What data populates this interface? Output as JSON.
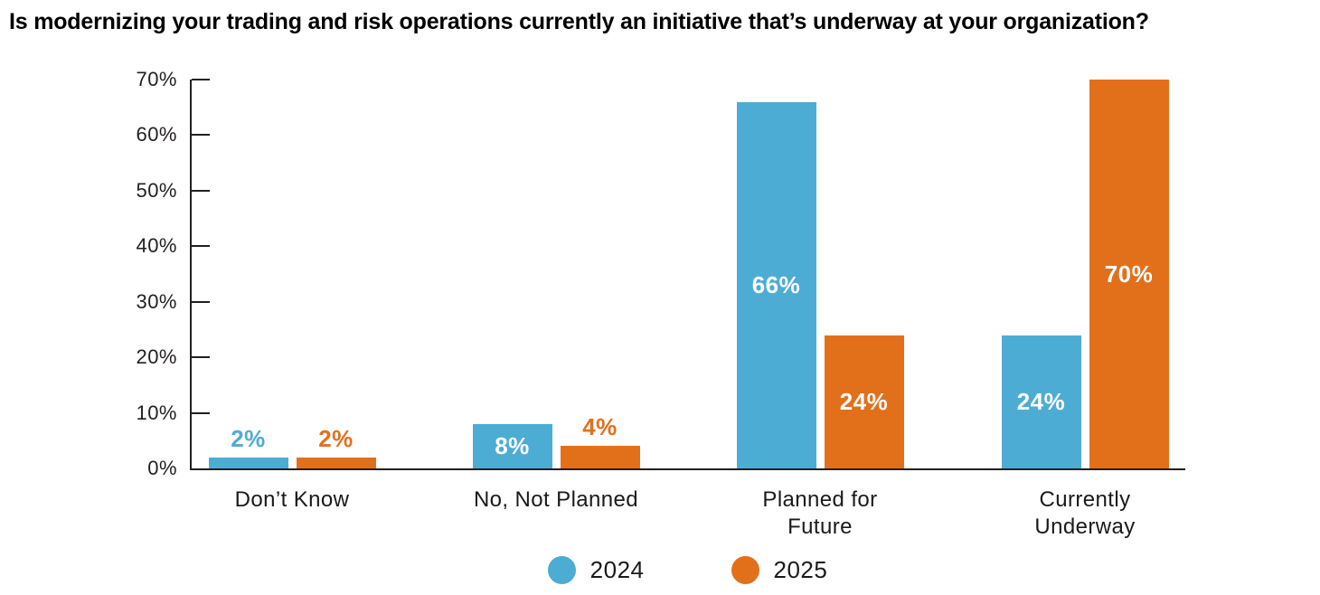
{
  "title": "Is modernizing your trading and risk operations currently an initiative that’s underway at your organization?",
  "colors": {
    "series_2024": "#4DACD4",
    "series_2025": "#E2701B",
    "axis": "#231F20",
    "title_text": "#000000",
    "category_text": "#1A1A1A",
    "value_label_inside": "#FFFFFF",
    "background": "#FFFFFF"
  },
  "chart_data": {
    "type": "bar",
    "title": "Is modernizing your trading and risk operations currently an initiative that’s underway at your organization?",
    "categories": [
      "Don’t Know",
      "No, Not Planned",
      "Planned for Future",
      "Currently Underway"
    ],
    "category_label_lines": [
      [
        "Don’t Know"
      ],
      [
        "No, Not Planned"
      ],
      [
        "Planned for",
        "Future"
      ],
      [
        "Currently",
        "Underway"
      ]
    ],
    "series": [
      {
        "name": "2024",
        "color": "#4DACD4",
        "values": [
          2,
          8,
          66,
          24
        ],
        "value_labels": [
          "2%",
          "8%",
          "66%",
          "24%"
        ]
      },
      {
        "name": "2025",
        "color": "#E2701B",
        "values": [
          2,
          4,
          24,
          70
        ],
        "value_labels": [
          "2%",
          "4%",
          "24%",
          "70%"
        ]
      }
    ],
    "xlabel": "",
    "ylabel": "",
    "ylim": [
      0,
      70
    ],
    "yticks": [
      {
        "value": 0,
        "label": "0%"
      },
      {
        "value": 10,
        "label": "10%"
      },
      {
        "value": 20,
        "label": "20%"
      },
      {
        "value": 30,
        "label": "30%"
      },
      {
        "value": 40,
        "label": "40%"
      },
      {
        "value": 50,
        "label": "50%"
      },
      {
        "value": 60,
        "label": "60%"
      },
      {
        "value": 70,
        "label": "70%"
      }
    ],
    "grid": false,
    "legend_position": "bottom-center",
    "legend": [
      "2024",
      "2025"
    ]
  }
}
